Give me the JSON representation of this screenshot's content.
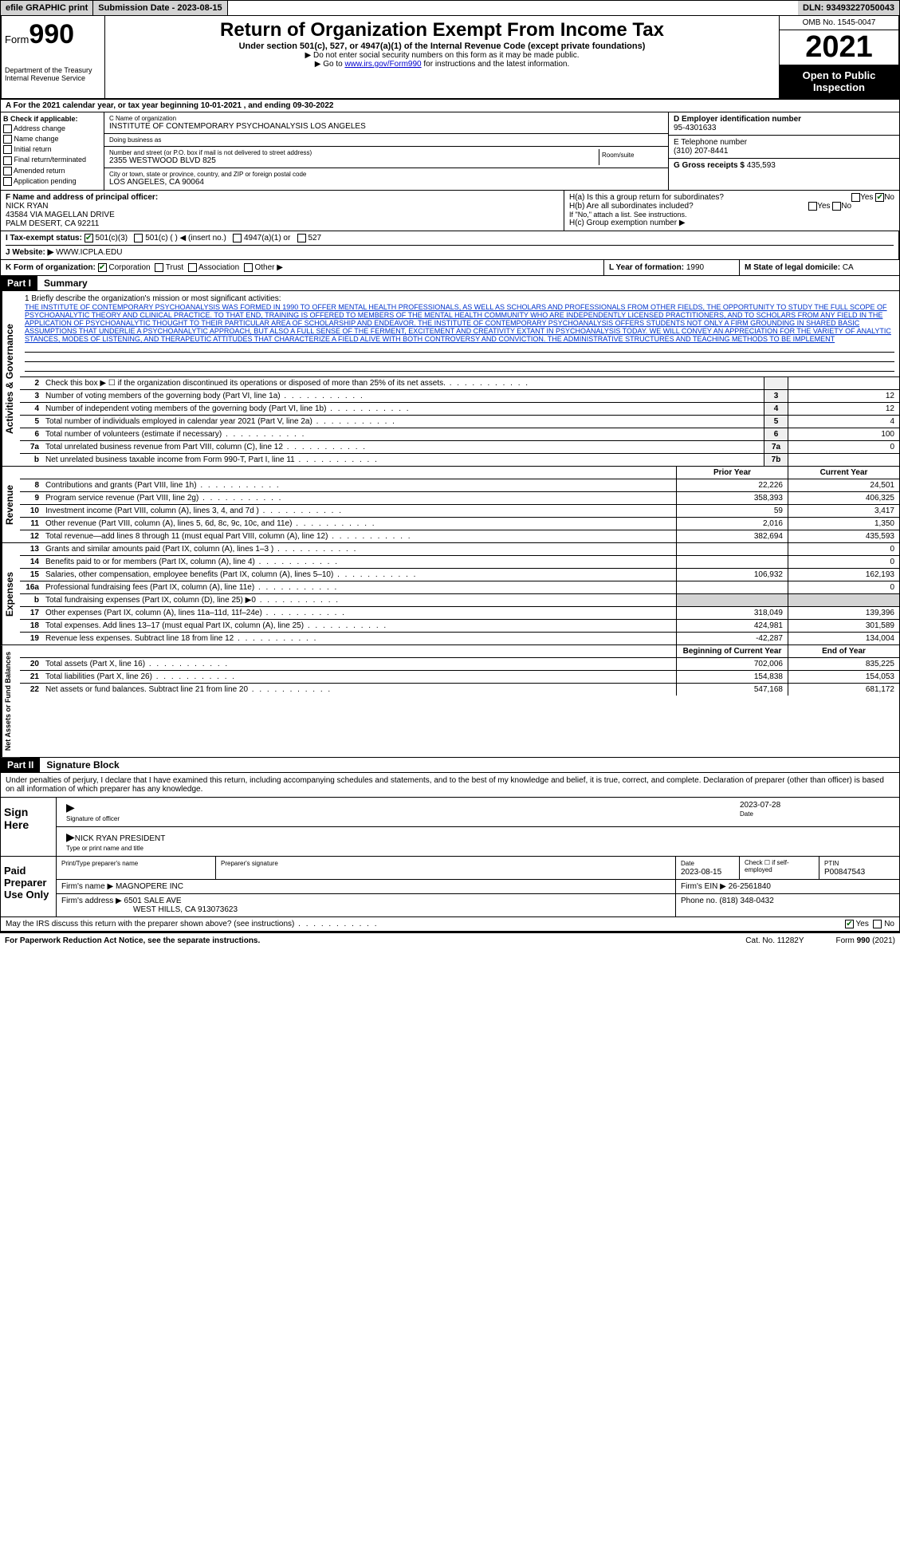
{
  "top": {
    "efile": "efile GRAPHIC print",
    "sub_date_label": "Submission Date - ",
    "sub_date": "2023-08-15",
    "dln_label": "DLN: ",
    "dln": "93493227050043"
  },
  "header": {
    "form_word": "Form",
    "form_num": "990",
    "dept": "Department of the Treasury Internal Revenue Service",
    "title": "Return of Organization Exempt From Income Tax",
    "subtitle": "Under section 501(c), 527, or 4947(a)(1) of the Internal Revenue Code (except private foundations)",
    "note1": "▶ Do not enter social security numbers on this form as it may be made public.",
    "note2_pre": "▶ Go to ",
    "note2_link": "www.irs.gov/Form990",
    "note2_post": " for instructions and the latest information.",
    "omb": "OMB No. 1545-0047",
    "year": "2021",
    "open": "Open to Public Inspection"
  },
  "row_a": "A For the 2021 calendar year, or tax year beginning 10-01-2021  , and ending 09-30-2022",
  "box_b": {
    "header": "B Check if applicable:",
    "items": [
      "Address change",
      "Name change",
      "Initial return",
      "Final return/terminated",
      "Amended return",
      "Application pending"
    ]
  },
  "box_c": {
    "name_lbl": "C Name of organization",
    "name": "INSTITUTE OF CONTEMPORARY PSYCHOANALYSIS LOS ANGELES",
    "dba_lbl": "Doing business as",
    "dba": "",
    "addr_lbl": "Number and street (or P.O. box if mail is not delivered to street address)",
    "addr": "2355 WESTWOOD BLVD 825",
    "room_lbl": "Room/suite",
    "city_lbl": "City or town, state or province, country, and ZIP or foreign postal code",
    "city": "LOS ANGELES, CA  90064"
  },
  "box_d": {
    "lbl": "D Employer identification number",
    "val": "95-4301633"
  },
  "box_e": {
    "lbl": "E Telephone number",
    "val": "(310) 207-8441"
  },
  "box_g": {
    "lbl": "G Gross receipts $",
    "val": "435,593"
  },
  "box_f": {
    "lbl": "F Name and address of principal officer:",
    "name": "NICK RYAN",
    "addr1": "43584 VIA MAGELLAN DRIVE",
    "addr2": "PALM DESERT, CA  92211"
  },
  "box_h": {
    "a": "H(a)  Is this a group return for subordinates?",
    "b": "H(b)  Are all subordinates included?",
    "b_note": "If \"No,\" attach a list. See instructions.",
    "c": "H(c)  Group exemption number ▶",
    "yes": "Yes",
    "no": "No"
  },
  "row_i": {
    "lbl": "I  Tax-exempt status:",
    "opts": [
      "501(c)(3)",
      "501(c) (  ) ◀ (insert no.)",
      "4947(a)(1) or",
      "527"
    ]
  },
  "row_j": {
    "lbl": "J  Website: ▶",
    "val": "WWW.ICPLA.EDU"
  },
  "row_k": {
    "lbl": "K Form of organization:",
    "opts": [
      "Corporation",
      "Trust",
      "Association",
      "Other ▶"
    ],
    "l_lbl": "L Year of formation:",
    "l_val": "1990",
    "m_lbl": "M State of legal domicile:",
    "m_val": "CA"
  },
  "part1": {
    "num": "Part I",
    "title": "Summary"
  },
  "side_labels": {
    "act": "Activities & Governance",
    "rev": "Revenue",
    "exp": "Expenses",
    "net": "Net Assets or Fund Balances"
  },
  "mission": {
    "lbl": "1    Briefly describe the organization's mission or most significant activities:",
    "text": "THE INSTITUTE OF CONTEMPORARY PSYCHOANALYSIS WAS FORMED IN 1990 TO OFFER MENTAL HEALTH PROFESSIONALS, AS WELL AS SCHOLARS AND PROFESSIONALS FROM OTHER FIELDS, THE OPPORTUNITY TO STUDY THE FULL SCOPE OF PSYCHOANALYTIC THEORY AND CLINICAL PRACTICE. TO THAT END, TRAINING IS OFFERED TO MEMBERS OF THE MENTAL HEALTH COMMUNITY WHO ARE INDEPENDENTLY LICENSED PRACTITIONERS, AND TO SCHOLARS FROM ANY FIELD IN THE APPLICATION OF PSYCHOANALYTIC THOUGHT TO THEIR PARTICULAR AREA OF SCHOLARSHIP AND ENDEAVOR. THE INSTITUTE OF CONTEMPORARY PSYCHOANALYSIS OFFERS STUDENTS NOT ONLY A FIRM GROUNDING IN SHARED BASIC ASSUMPTIONS THAT UNDERLIE A PSYCHOANALYTIC APPROACH, BUT ALSO A FULL SENSE OF THE FERMENT, EXCITEMENT AND CREATIVITY EXTANT IN PSYCHOANALYSIS TODAY. WE WILL CONVEY AN APPRECIATION FOR THE VARIETY OF ANALYTIC STANCES, MODES OF LISTENING, AND THERAPEUTIC ATTITUDES THAT CHARACTERIZE A FIELD ALIVE WITH BOTH CONTROVERSY AND CONVICTION. THE ADMINISTRATIVE STRUCTURES AND TEACHING METHODS TO BE IMPLEMENT"
  },
  "lines_gov": [
    {
      "n": "2",
      "t": "Check this box ▶ ☐ if the organization discontinued its operations or disposed of more than 25% of its net assets.",
      "box": "",
      "v": ""
    },
    {
      "n": "3",
      "t": "Number of voting members of the governing body (Part VI, line 1a)",
      "box": "3",
      "v": "12"
    },
    {
      "n": "4",
      "t": "Number of independent voting members of the governing body (Part VI, line 1b)",
      "box": "4",
      "v": "12"
    },
    {
      "n": "5",
      "t": "Total number of individuals employed in calendar year 2021 (Part V, line 2a)",
      "box": "5",
      "v": "4"
    },
    {
      "n": "6",
      "t": "Total number of volunteers (estimate if necessary)",
      "box": "6",
      "v": "100"
    },
    {
      "n": "7a",
      "t": "Total unrelated business revenue from Part VIII, column (C), line 12",
      "box": "7a",
      "v": "0"
    },
    {
      "n": "b",
      "t": "Net unrelated business taxable income from Form 990-T, Part I, line 11",
      "box": "7b",
      "v": ""
    }
  ],
  "col_hdrs": {
    "prior": "Prior Year",
    "curr": "Current Year",
    "beg": "Beginning of Current Year",
    "end": "End of Year"
  },
  "lines_rev": [
    {
      "n": "8",
      "t": "Contributions and grants (Part VIII, line 1h)",
      "p": "22,226",
      "c": "24,501"
    },
    {
      "n": "9",
      "t": "Program service revenue (Part VIII, line 2g)",
      "p": "358,393",
      "c": "406,325"
    },
    {
      "n": "10",
      "t": "Investment income (Part VIII, column (A), lines 3, 4, and 7d )",
      "p": "59",
      "c": "3,417"
    },
    {
      "n": "11",
      "t": "Other revenue (Part VIII, column (A), lines 5, 6d, 8c, 9c, 10c, and 11e)",
      "p": "2,016",
      "c": "1,350"
    },
    {
      "n": "12",
      "t": "Total revenue—add lines 8 through 11 (must equal Part VIII, column (A), line 12)",
      "p": "382,694",
      "c": "435,593"
    }
  ],
  "lines_exp": [
    {
      "n": "13",
      "t": "Grants and similar amounts paid (Part IX, column (A), lines 1–3 )",
      "p": "",
      "c": "0"
    },
    {
      "n": "14",
      "t": "Benefits paid to or for members (Part IX, column (A), line 4)",
      "p": "",
      "c": "0"
    },
    {
      "n": "15",
      "t": "Salaries, other compensation, employee benefits (Part IX, column (A), lines 5–10)",
      "p": "106,932",
      "c": "162,193"
    },
    {
      "n": "16a",
      "t": "Professional fundraising fees (Part IX, column (A), line 11e)",
      "p": "",
      "c": "0"
    },
    {
      "n": "b",
      "t": "Total fundraising expenses (Part IX, column (D), line 25) ▶0",
      "p": "shaded",
      "c": "shaded"
    },
    {
      "n": "17",
      "t": "Other expenses (Part IX, column (A), lines 11a–11d, 11f–24e)",
      "p": "318,049",
      "c": "139,396"
    },
    {
      "n": "18",
      "t": "Total expenses. Add lines 13–17 (must equal Part IX, column (A), line 25)",
      "p": "424,981",
      "c": "301,589"
    },
    {
      "n": "19",
      "t": "Revenue less expenses. Subtract line 18 from line 12",
      "p": "-42,287",
      "c": "134,004"
    }
  ],
  "lines_net": [
    {
      "n": "20",
      "t": "Total assets (Part X, line 16)",
      "p": "702,006",
      "c": "835,225"
    },
    {
      "n": "21",
      "t": "Total liabilities (Part X, line 26)",
      "p": "154,838",
      "c": "154,053"
    },
    {
      "n": "22",
      "t": "Net assets or fund balances. Subtract line 21 from line 20",
      "p": "547,168",
      "c": "681,172"
    }
  ],
  "part2": {
    "num": "Part II",
    "title": "Signature Block"
  },
  "sig": {
    "intro": "Under penalties of perjury, I declare that I have examined this return, including accompanying schedules and statements, and to the best of my knowledge and belief, it is true, correct, and complete. Declaration of preparer (other than officer) is based on all information of which preparer has any knowledge.",
    "sign_here": "Sign Here",
    "sig_officer": "Signature of officer",
    "date_val": "2023-07-28",
    "date_lbl": "Date",
    "officer_name": "NICK RYAN  PRESIDENT",
    "type_name": "Type or print name and title",
    "paid_prep": "Paid Preparer Use Only",
    "prep_name_lbl": "Print/Type preparer's name",
    "prep_sig_lbl": "Preparer's signature",
    "prep_date_lbl": "Date",
    "prep_date": "2023-08-15",
    "check_self": "Check ☐ if self-employed",
    "ptin_lbl": "PTIN",
    "ptin": "P00847543",
    "firm_name_lbl": "Firm's name   ▶",
    "firm_name": "MAGNOPERE INC",
    "firm_ein_lbl": "Firm's EIN ▶",
    "firm_ein": "26-2561840",
    "firm_addr_lbl": "Firm's address ▶",
    "firm_addr": "6501 SALE AVE",
    "firm_city": "WEST HILLS, CA  913073623",
    "phone_lbl": "Phone no.",
    "phone": "(818) 348-0432",
    "discuss": "May the IRS discuss this return with the preparer shown above? (see instructions)",
    "yes": "Yes",
    "no": "No"
  },
  "footer": {
    "left": "For Paperwork Reduction Act Notice, see the separate instructions.",
    "mid": "Cat. No. 11282Y",
    "right": "Form 990 (2021)"
  }
}
